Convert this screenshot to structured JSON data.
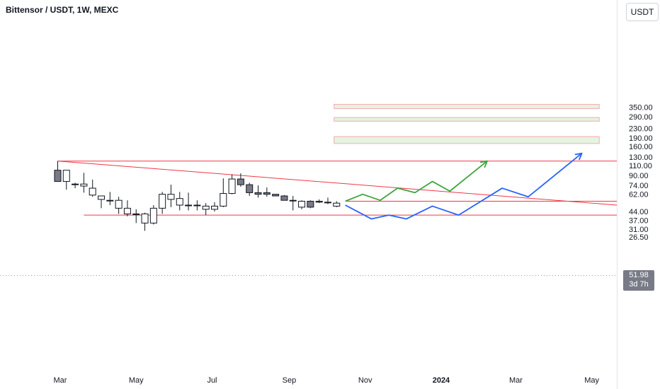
{
  "header": {
    "title": "Bittensor / USDT, 1W, MEXC",
    "currency": "USDT"
  },
  "colors": {
    "up_fill": "#ffffff",
    "down_fill": "#787b86",
    "candle_stroke": "#131722",
    "resistance": "#f23645",
    "zone_fill": "#e3f4e0",
    "zone_stroke": "#f7a8b0",
    "path_bull": "#3ca63c",
    "path_bear": "#2962ff",
    "current_badge": "#787b86"
  },
  "price_badge": {
    "price": "51.98",
    "countdown": "3d 7h"
  },
  "chart_data": {
    "type": "candlestick",
    "scale": "log",
    "y_ticks": [
      "350.00",
      "290.00",
      "230.00",
      "190.00",
      "160.00",
      "130.00",
      "110.00",
      "90.00",
      "74.00",
      "62.00",
      "51.98",
      "44.00",
      "37.00",
      "31.00",
      "26.50"
    ],
    "x_ticks": [
      {
        "label": "Mar",
        "date": "2023-03-01",
        "bold": false
      },
      {
        "label": "May",
        "date": "2023-05-01",
        "bold": false
      },
      {
        "label": "Jul",
        "date": "2023-07-01",
        "bold": false
      },
      {
        "label": "Sep",
        "date": "2023-09-01",
        "bold": false
      },
      {
        "label": "Nov",
        "date": "2023-11-01",
        "bold": false
      },
      {
        "label": "2024",
        "date": "2024-01-01",
        "bold": true
      },
      {
        "label": "Mar",
        "date": "2024-03-01",
        "bold": false
      },
      {
        "label": "May",
        "date": "2024-05-01",
        "bold": false
      }
    ],
    "candles": [
      {
        "date": "2023-02-27",
        "o": 100,
        "h": 120,
        "l": 80,
        "c": 80
      },
      {
        "date": "2023-03-06",
        "o": 80,
        "h": 100,
        "l": 68,
        "c": 100
      },
      {
        "date": "2023-03-13",
        "o": 75,
        "h": 78,
        "l": 70,
        "c": 76
      },
      {
        "date": "2023-03-20",
        "o": 73,
        "h": 95,
        "l": 64,
        "c": 76
      },
      {
        "date": "2023-03-27",
        "o": 61,
        "h": 83,
        "l": 59,
        "c": 70
      },
      {
        "date": "2023-04-03",
        "o": 56,
        "h": 60,
        "l": 47,
        "c": 60
      },
      {
        "date": "2023-04-10",
        "o": 55,
        "h": 65,
        "l": 50,
        "c": 55
      },
      {
        "date": "2023-04-17",
        "o": 47,
        "h": 59,
        "l": 42,
        "c": 55
      },
      {
        "date": "2023-04-24",
        "o": 42,
        "h": 55,
        "l": 40,
        "c": 47
      },
      {
        "date": "2023-05-01",
        "o": 42,
        "h": 46,
        "l": 35,
        "c": 42
      },
      {
        "date": "2023-05-08",
        "o": 35,
        "h": 43,
        "l": 30,
        "c": 42
      },
      {
        "date": "2023-05-15",
        "o": 35,
        "h": 50,
        "l": 34,
        "c": 47
      },
      {
        "date": "2023-05-22",
        "o": 47,
        "h": 65,
        "l": 42,
        "c": 62
      },
      {
        "date": "2023-05-29",
        "o": 56,
        "h": 75,
        "l": 48,
        "c": 62
      },
      {
        "date": "2023-06-05",
        "o": 50,
        "h": 65,
        "l": 45,
        "c": 57
      },
      {
        "date": "2023-06-12",
        "o": 50,
        "h": 64,
        "l": 45,
        "c": 50
      },
      {
        "date": "2023-06-19",
        "o": 50,
        "h": 55,
        "l": 45,
        "c": 50
      },
      {
        "date": "2023-06-26",
        "o": 46,
        "h": 52,
        "l": 41,
        "c": 49
      },
      {
        "date": "2023-07-03",
        "o": 46,
        "h": 53,
        "l": 44,
        "c": 49
      },
      {
        "date": "2023-07-10",
        "o": 49,
        "h": 85,
        "l": 48,
        "c": 63
      },
      {
        "date": "2023-07-17",
        "o": 63,
        "h": 92,
        "l": 62,
        "c": 84
      },
      {
        "date": "2023-07-24",
        "o": 84,
        "h": 94,
        "l": 72,
        "c": 75
      },
      {
        "date": "2023-07-31",
        "o": 75,
        "h": 78,
        "l": 60,
        "c": 64
      },
      {
        "date": "2023-08-07",
        "o": 64,
        "h": 74,
        "l": 58,
        "c": 62
      },
      {
        "date": "2023-08-14",
        "o": 64,
        "h": 71,
        "l": 59,
        "c": 62
      },
      {
        "date": "2023-08-21",
        "o": 62,
        "h": 62,
        "l": 60,
        "c": 60
      },
      {
        "date": "2023-08-28",
        "o": 60,
        "h": 61,
        "l": 55,
        "c": 55
      },
      {
        "date": "2023-09-04",
        "o": 55,
        "h": 60,
        "l": 45,
        "c": 55
      },
      {
        "date": "2023-09-11",
        "o": 48,
        "h": 55,
        "l": 46,
        "c": 54
      },
      {
        "date": "2023-09-18",
        "o": 54,
        "h": 55,
        "l": 47,
        "c": 48
      },
      {
        "date": "2023-09-25",
        "o": 54,
        "h": 56,
        "l": 52,
        "c": 53
      },
      {
        "date": "2023-10-02",
        "o": 53,
        "h": 58,
        "l": 51,
        "c": 53
      },
      {
        "date": "2023-10-09",
        "o": 49,
        "h": 54,
        "l": 48,
        "c": 52
      }
    ],
    "horizontal_lines": [
      {
        "price": 120,
        "from": "2023-02-27",
        "to": "2024-06-01"
      },
      {
        "price": 54,
        "from": "2023-10-16",
        "to": "2024-06-01"
      },
      {
        "price": 41,
        "from": "2023-03-20",
        "to": "2024-06-01"
      }
    ],
    "trend_line": {
      "from": {
        "date": "2023-02-27",
        "price": 120
      },
      "to": {
        "date": "2024-05-25",
        "price": 50
      }
    },
    "target_zones": [
      {
        "low": 340,
        "high": 370,
        "from": "2023-10-07",
        "to": "2024-05-07"
      },
      {
        "low": 265,
        "high": 285,
        "from": "2023-10-07",
        "to": "2024-05-07"
      },
      {
        "low": 170,
        "high": 195,
        "from": "2023-10-07",
        "to": "2024-05-07"
      }
    ],
    "projections": [
      {
        "path": "bull",
        "points": [
          {
            "date": "2023-10-16",
            "price": 54
          },
          {
            "date": "2023-10-30",
            "price": 62
          },
          {
            "date": "2023-11-13",
            "price": 55
          },
          {
            "date": "2023-11-27",
            "price": 70
          },
          {
            "date": "2023-12-11",
            "price": 64
          },
          {
            "date": "2023-12-25",
            "price": 80
          },
          {
            "date": "2024-01-08",
            "price": 66
          },
          {
            "date": "2024-02-07",
            "price": 120
          }
        ]
      },
      {
        "path": "bear",
        "points": [
          {
            "date": "2023-10-16",
            "price": 50
          },
          {
            "date": "2023-11-06",
            "price": 38
          },
          {
            "date": "2023-11-20",
            "price": 41
          },
          {
            "date": "2023-12-04",
            "price": 38
          },
          {
            "date": "2023-12-25",
            "price": 49
          },
          {
            "date": "2024-01-15",
            "price": 41
          },
          {
            "date": "2024-02-19",
            "price": 70
          },
          {
            "date": "2024-03-11",
            "price": 59
          },
          {
            "date": "2024-04-23",
            "price": 140
          }
        ]
      }
    ]
  }
}
